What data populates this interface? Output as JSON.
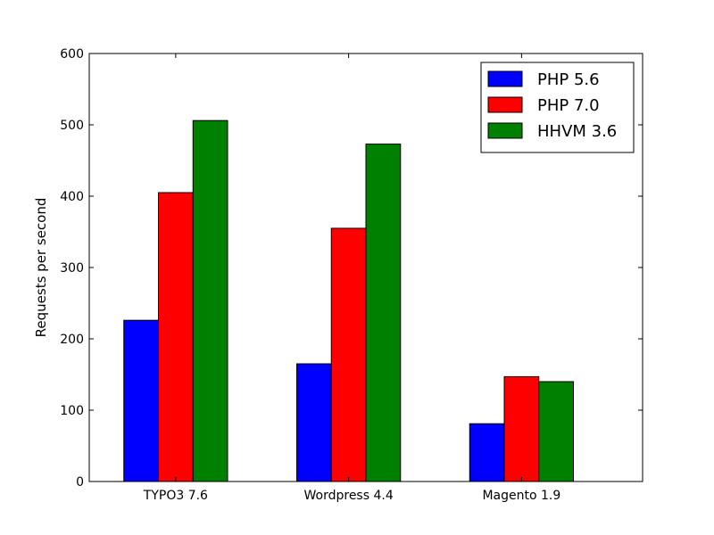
{
  "chart_data": {
    "type": "bar",
    "title": "",
    "xlabel": "",
    "ylabel": "Requests per second",
    "categories": [
      "TYPO3 7.6",
      "Wordpress 4.4",
      "Magento 1.9"
    ],
    "series": [
      {
        "name": "PHP 5.6",
        "color": "#0000ff",
        "values": [
          226,
          165,
          81
        ]
      },
      {
        "name": "PHP 7.0",
        "color": "#ff0000",
        "values": [
          405,
          355,
          147
        ]
      },
      {
        "name": "HHVM 3.6",
        "color": "#008000",
        "values": [
          506,
          473,
          140
        ]
      }
    ],
    "ylim": [
      0,
      600
    ],
    "yticks": [
      0,
      100,
      200,
      300,
      400,
      500,
      600
    ],
    "grid": false,
    "legend_position": "top-right"
  }
}
